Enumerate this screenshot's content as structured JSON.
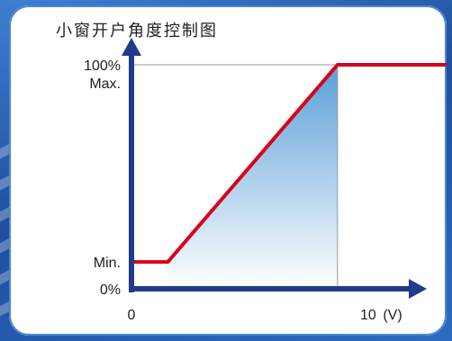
{
  "chart_data": {
    "type": "line",
    "title": "小窗开户角度控制图",
    "x_ticks": [
      {
        "value": 0,
        "label": "0"
      },
      {
        "value": 10,
        "label": "10"
      }
    ],
    "x_unit": "(V)",
    "y_ticks": [
      {
        "value": 0,
        "label": "0%"
      },
      {
        "value": 12,
        "label": "Min."
      },
      {
        "value": 100,
        "label": "100%"
      }
    ],
    "y_max_label": "Max.",
    "xlim": [
      0,
      13
    ],
    "ylim": [
      0,
      100
    ],
    "series": [
      {
        "color": "#d9001b",
        "x": [
          0,
          1.5,
          8.5,
          13
        ],
        "y": [
          12,
          12,
          100,
          100
        ]
      }
    ],
    "reference_x": 8.5
  },
  "colors": {
    "axis": "#1f3b8a",
    "fill_top": "#5a9fd8",
    "fill_bottom": "#ffffff",
    "line": "#d9001b"
  }
}
